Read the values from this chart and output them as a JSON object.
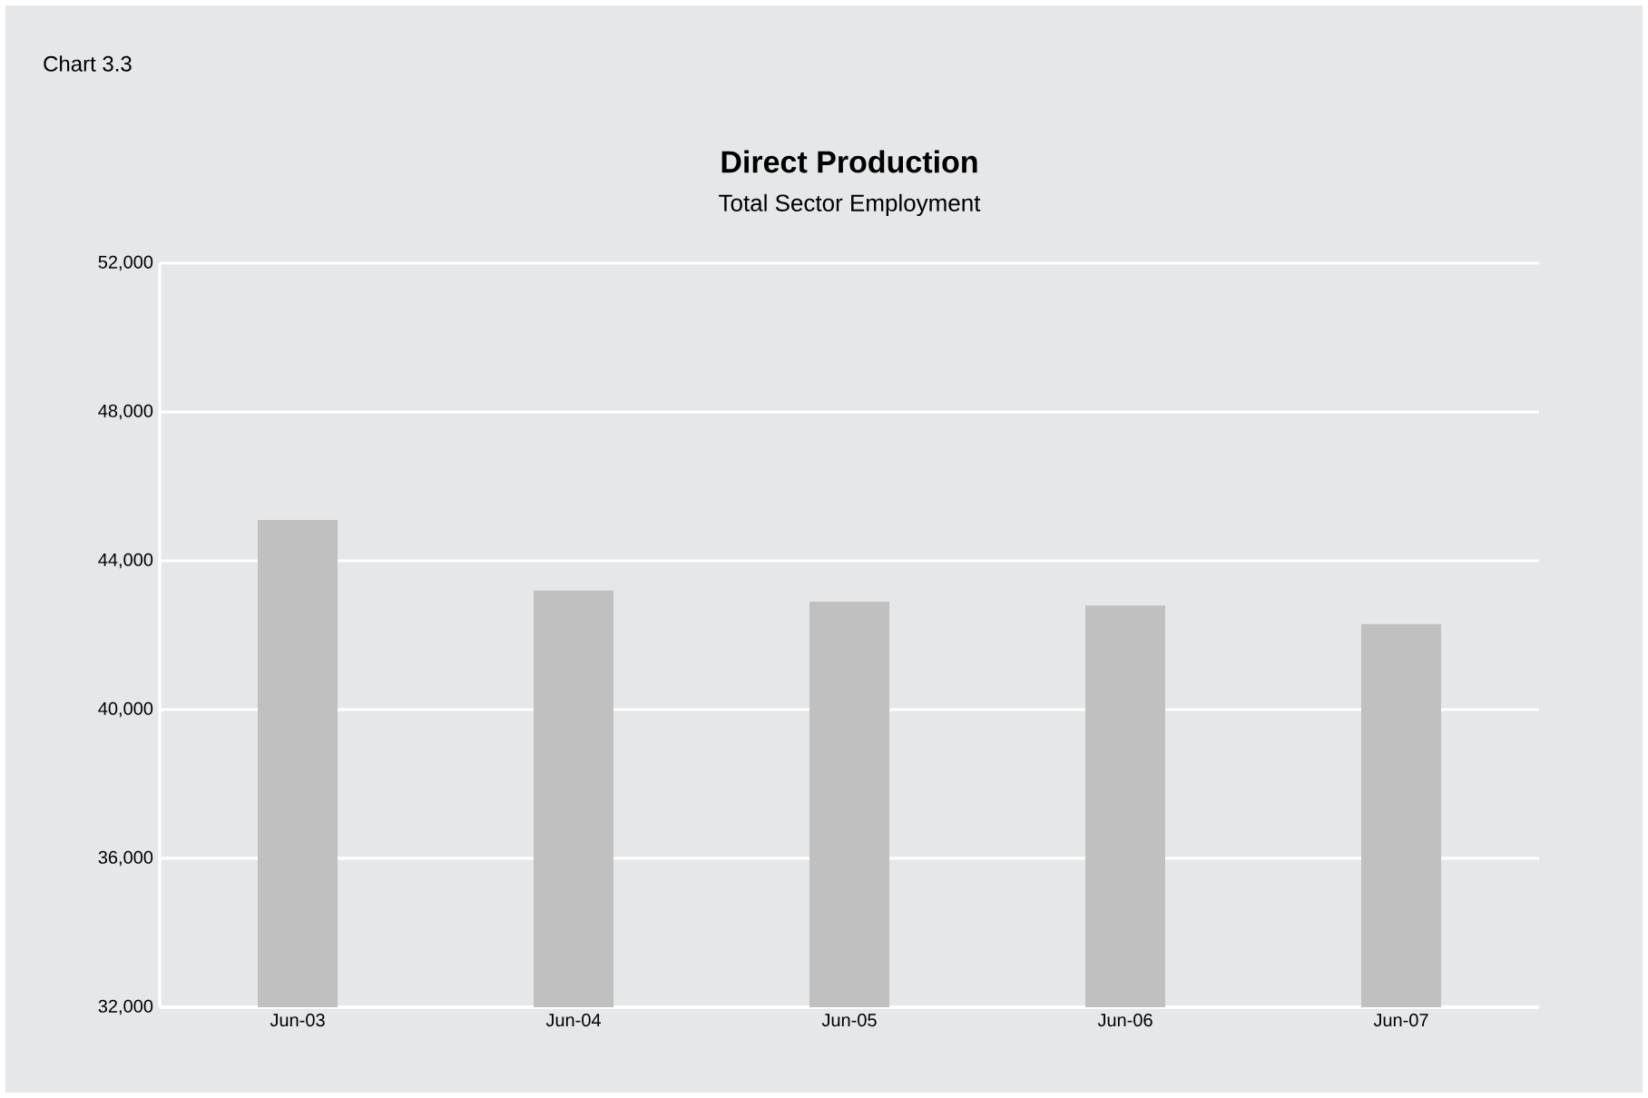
{
  "chart_data": {
    "type": "bar",
    "title": "Direct Production",
    "subtitle": "Total Sector Employment",
    "annotations": [
      "Chart 3.3"
    ],
    "categories": [
      "Jun-03",
      "Jun-04",
      "Jun-05",
      "Jun-06",
      "Jun-07"
    ],
    "values": [
      45100,
      43200,
      42900,
      42800,
      42300
    ],
    "color": "#c0c0c0",
    "ylim": [
      32000,
      52000
    ],
    "yticks": [
      {
        "value": 32000,
        "label": "32,000"
      },
      {
        "value": 36000,
        "label": "36,000"
      },
      {
        "value": 40000,
        "label": "40,000"
      },
      {
        "value": 44000,
        "label": "44,000"
      },
      {
        "value": 48000,
        "label": "48,000"
      },
      {
        "value": 52000,
        "label": "52,000"
      }
    ],
    "grid": "y"
  }
}
